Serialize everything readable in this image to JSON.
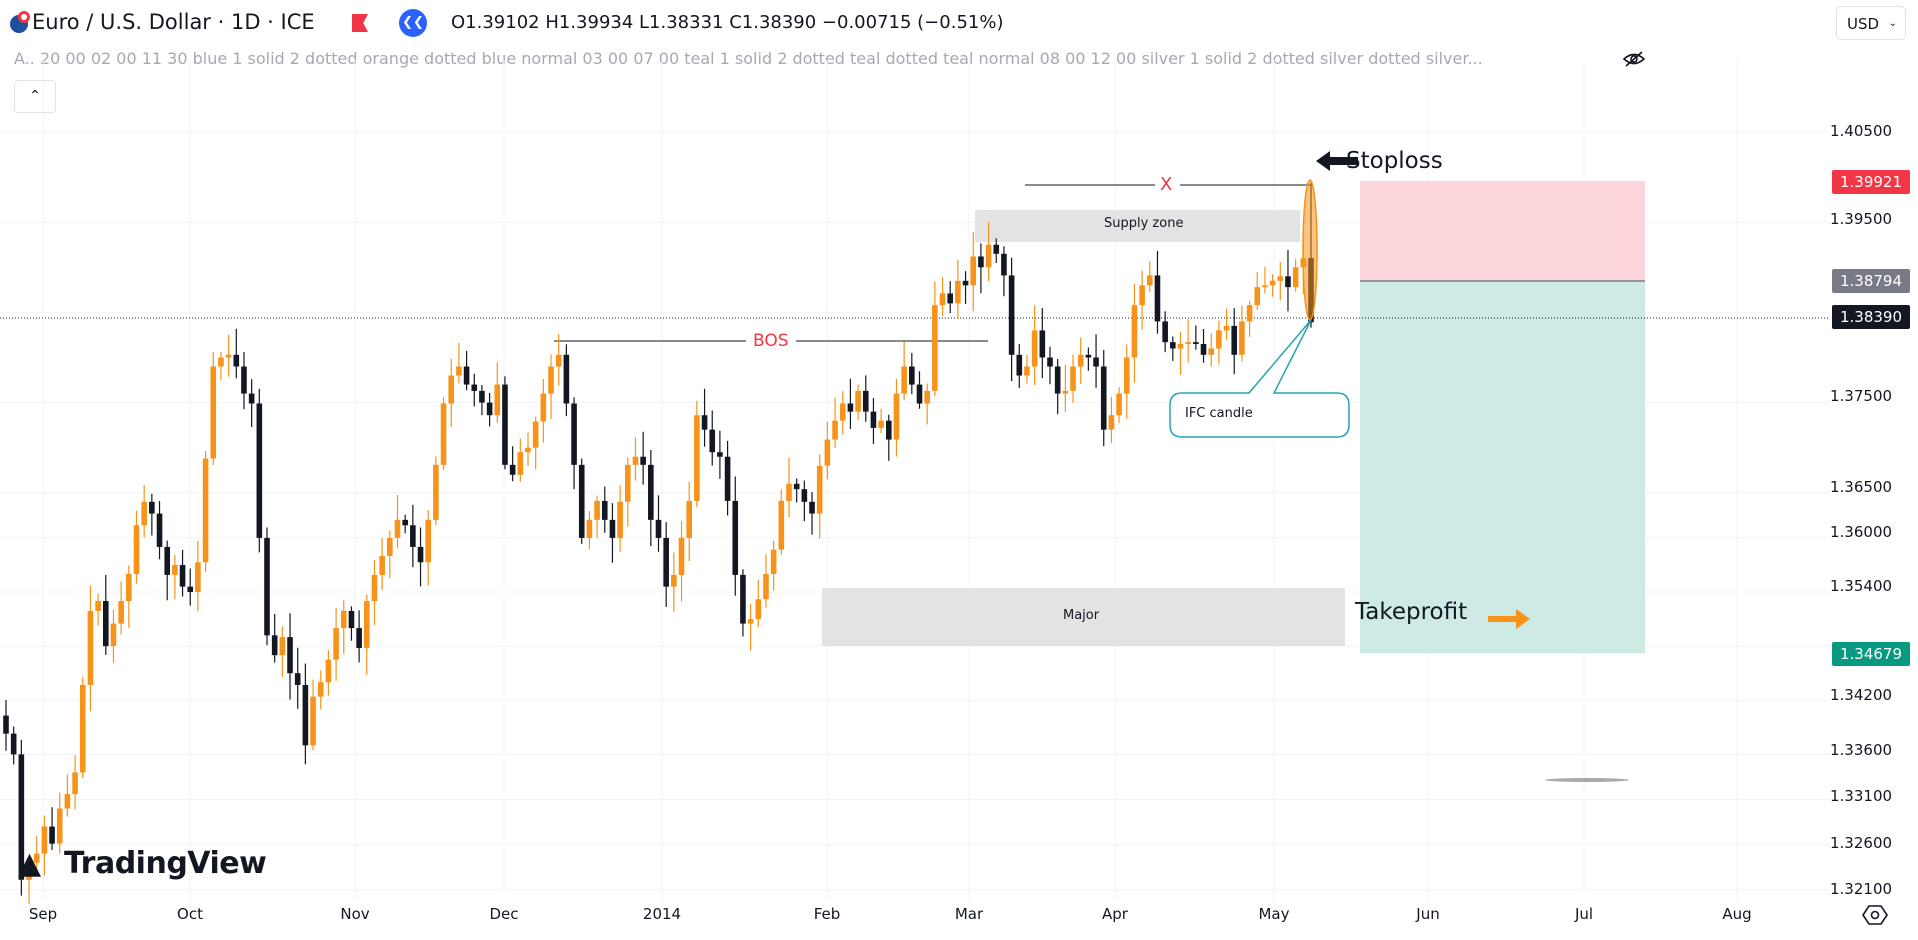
{
  "header": {
    "symbol_title": "Euro / U.S. Dollar · 1D · ICE",
    "ohlc": "O1.39102 H1.39934 L1.38331 C1.38390 −0.00715 (−0.51%)",
    "indicator_text": "A.. 20 00 02 00 11 30 blue 1 solid 2 dotted orange dotted blue normal 03 00 07 00 teal 1 solid 2 dotted teal dotted teal normal 08 00 12 00 silver 1 solid 2 dotted silver dotted silver...",
    "currency": "USD",
    "collapse_icon": "chevron-up-icon"
  },
  "price_axis": [
    "1.40500",
    "1.39500",
    "1.37500",
    "1.36500",
    "1.36000",
    "1.35400",
    "1.34200",
    "1.33600",
    "1.33100",
    "1.32600",
    "1.32100"
  ],
  "price_tags": {
    "stoploss": {
      "value": "1.39921",
      "color": "#f23645"
    },
    "entry": {
      "value": "1.38794",
      "color": "#787b86"
    },
    "current": {
      "value": "1.38390",
      "color": "#131722"
    },
    "takeprofit": {
      "value": "1.34679",
      "color": "#089981"
    }
  },
  "time_axis": [
    "Sep",
    "Oct",
    "Nov",
    "Dec",
    "2014",
    "Feb",
    "Mar",
    "Apr",
    "May",
    "Jun",
    "Jul",
    "Aug"
  ],
  "annotations": {
    "supply_zone": "Supply zone",
    "major": "Major",
    "bos": "BOS",
    "x_label": "X",
    "stoploss": "Stoploss",
    "takeprofit": "Takeprofit",
    "ifc": "IFC candle"
  },
  "logo": "TradingView",
  "colors": {
    "up": "#f7931a",
    "down": "#131722",
    "sl_zone": "#fcd6da",
    "tp_zone": "#cdeae4"
  },
  "chart_data": {
    "type": "candlestick",
    "last_candle": {
      "open": 1.39102,
      "high": 1.39934,
      "low": 1.38331,
      "close": 1.3839
    },
    "closes": [
      1.3383,
      1.336,
      1.3221,
      1.324,
      1.325,
      1.328,
      1.3261,
      1.33,
      1.3316,
      1.334,
      1.3437,
      1.3519,
      1.353,
      1.348,
      1.3505,
      1.353,
      1.356,
      1.3614,
      1.364,
      1.3627,
      1.359,
      1.3559,
      1.357,
      1.3546,
      1.354,
      1.3573,
      1.3688,
      1.379,
      1.38,
      1.3803,
      1.379,
      1.376,
      1.3749,
      1.36,
      1.3492,
      1.347,
      1.349,
      1.345,
      1.3437,
      1.337,
      1.3424,
      1.344,
      1.3465,
      1.35,
      1.3519,
      1.35,
      1.3478,
      1.353,
      1.3559,
      1.358,
      1.36,
      1.362,
      1.3614,
      1.359,
      1.3573,
      1.362,
      1.3681,
      1.3749,
      1.378,
      1.379,
      1.377,
      1.3763,
      1.375,
      1.3736,
      1.377,
      1.3681,
      1.367,
      1.3695,
      1.37,
      1.3729,
      1.376,
      1.379,
      1.3803,
      1.3749,
      1.3681,
      1.36,
      1.362,
      1.3641,
      1.362,
      1.36,
      1.364,
      1.3681,
      1.369,
      1.3681,
      1.362,
      1.36,
      1.3546,
      1.3559,
      1.36,
      1.3641,
      1.3736,
      1.372,
      1.3695,
      1.369,
      1.3641,
      1.3559,
      1.3505,
      1.351,
      1.3532,
      1.356,
      1.3587,
      1.3641,
      1.366,
      1.3654,
      1.364,
      1.3627,
      1.368,
      1.3709,
      1.373,
      1.3749,
      1.374,
      1.3763,
      1.374,
      1.3722,
      1.373,
      1.3709,
      1.376,
      1.379,
      1.377,
      1.3749,
      1.3763,
      1.3858,
      1.3871,
      1.386,
      1.3885,
      1.388,
      1.3912,
      1.39,
      1.3925,
      1.3915,
      1.3891,
      1.3803,
      1.378,
      1.379,
      1.383,
      1.38,
      1.379,
      1.376,
      1.3763,
      1.379,
      1.3803,
      1.38,
      1.379,
      1.372,
      1.3736,
      1.376,
      1.38,
      1.3858,
      1.388,
      1.3891,
      1.384,
      1.3817,
      1.381,
      1.3815,
      1.3817,
      1.3815,
      1.3803,
      1.381,
      1.383,
      1.3835,
      1.3803,
      1.384,
      1.3858,
      1.3878,
      1.388,
      1.3885,
      1.389,
      1.3878,
      1.39,
      1.391,
      1.3839
    ],
    "position": {
      "stoploss": 1.39921,
      "entry": 1.38794,
      "takeprofit": 1.34679
    }
  }
}
